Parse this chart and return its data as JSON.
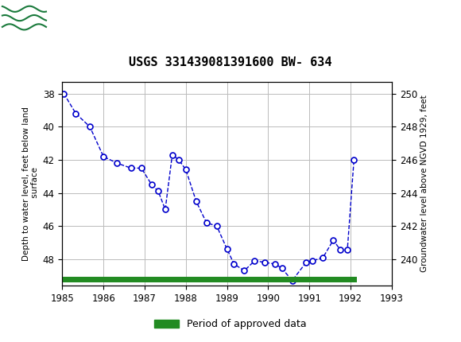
{
  "title": "USGS 331439081391600 BW- 634",
  "ylabel_left": "Depth to water level, feet below land\n surface",
  "ylabel_right": "Groundwater level above NGVD 1929, feet",
  "header_color": "#1a7a3c",
  "header_text_color": "#ffffff",
  "background_color": "#ffffff",
  "plot_bg_color": "#ffffff",
  "grid_color": "#bbbbbb",
  "line_color": "#0000cc",
  "marker_color": "#0000cc",
  "approved_bar_color": "#228B22",
  "xlim": [
    1985,
    1993
  ],
  "ylim_left": [
    49.6,
    37.3
  ],
  "ylim_right": [
    238.4,
    250.7
  ],
  "xticks": [
    1985,
    1986,
    1987,
    1988,
    1989,
    1990,
    1991,
    1992,
    1993
  ],
  "yticks_left": [
    38,
    40,
    42,
    44,
    46,
    48
  ],
  "yticks_right": [
    240,
    242,
    244,
    246,
    248,
    250
  ],
  "data_x": [
    1985.04,
    1985.33,
    1985.67,
    1986.0,
    1986.33,
    1986.67,
    1986.92,
    1987.17,
    1987.33,
    1987.5,
    1987.67,
    1987.83,
    1988.0,
    1988.25,
    1988.5,
    1988.75,
    1989.0,
    1989.17,
    1989.42,
    1989.67,
    1989.92,
    1990.17,
    1990.33,
    1990.58,
    1990.92,
    1991.08,
    1991.33,
    1991.58,
    1991.75,
    1991.92,
    1992.08
  ],
  "data_y": [
    38.0,
    39.2,
    40.0,
    41.8,
    42.2,
    42.5,
    42.5,
    43.5,
    43.9,
    45.0,
    41.7,
    42.0,
    42.6,
    44.5,
    45.8,
    46.0,
    47.4,
    48.3,
    48.7,
    48.1,
    48.2,
    48.3,
    48.55,
    49.3,
    48.2,
    48.1,
    47.9,
    46.85,
    47.45,
    47.45,
    42.0
  ],
  "approved_bar_xmin": 1985.0,
  "approved_bar_xmax": 1992.15,
  "approved_bar_y": 49.25,
  "legend_label": "Period of approved data"
}
